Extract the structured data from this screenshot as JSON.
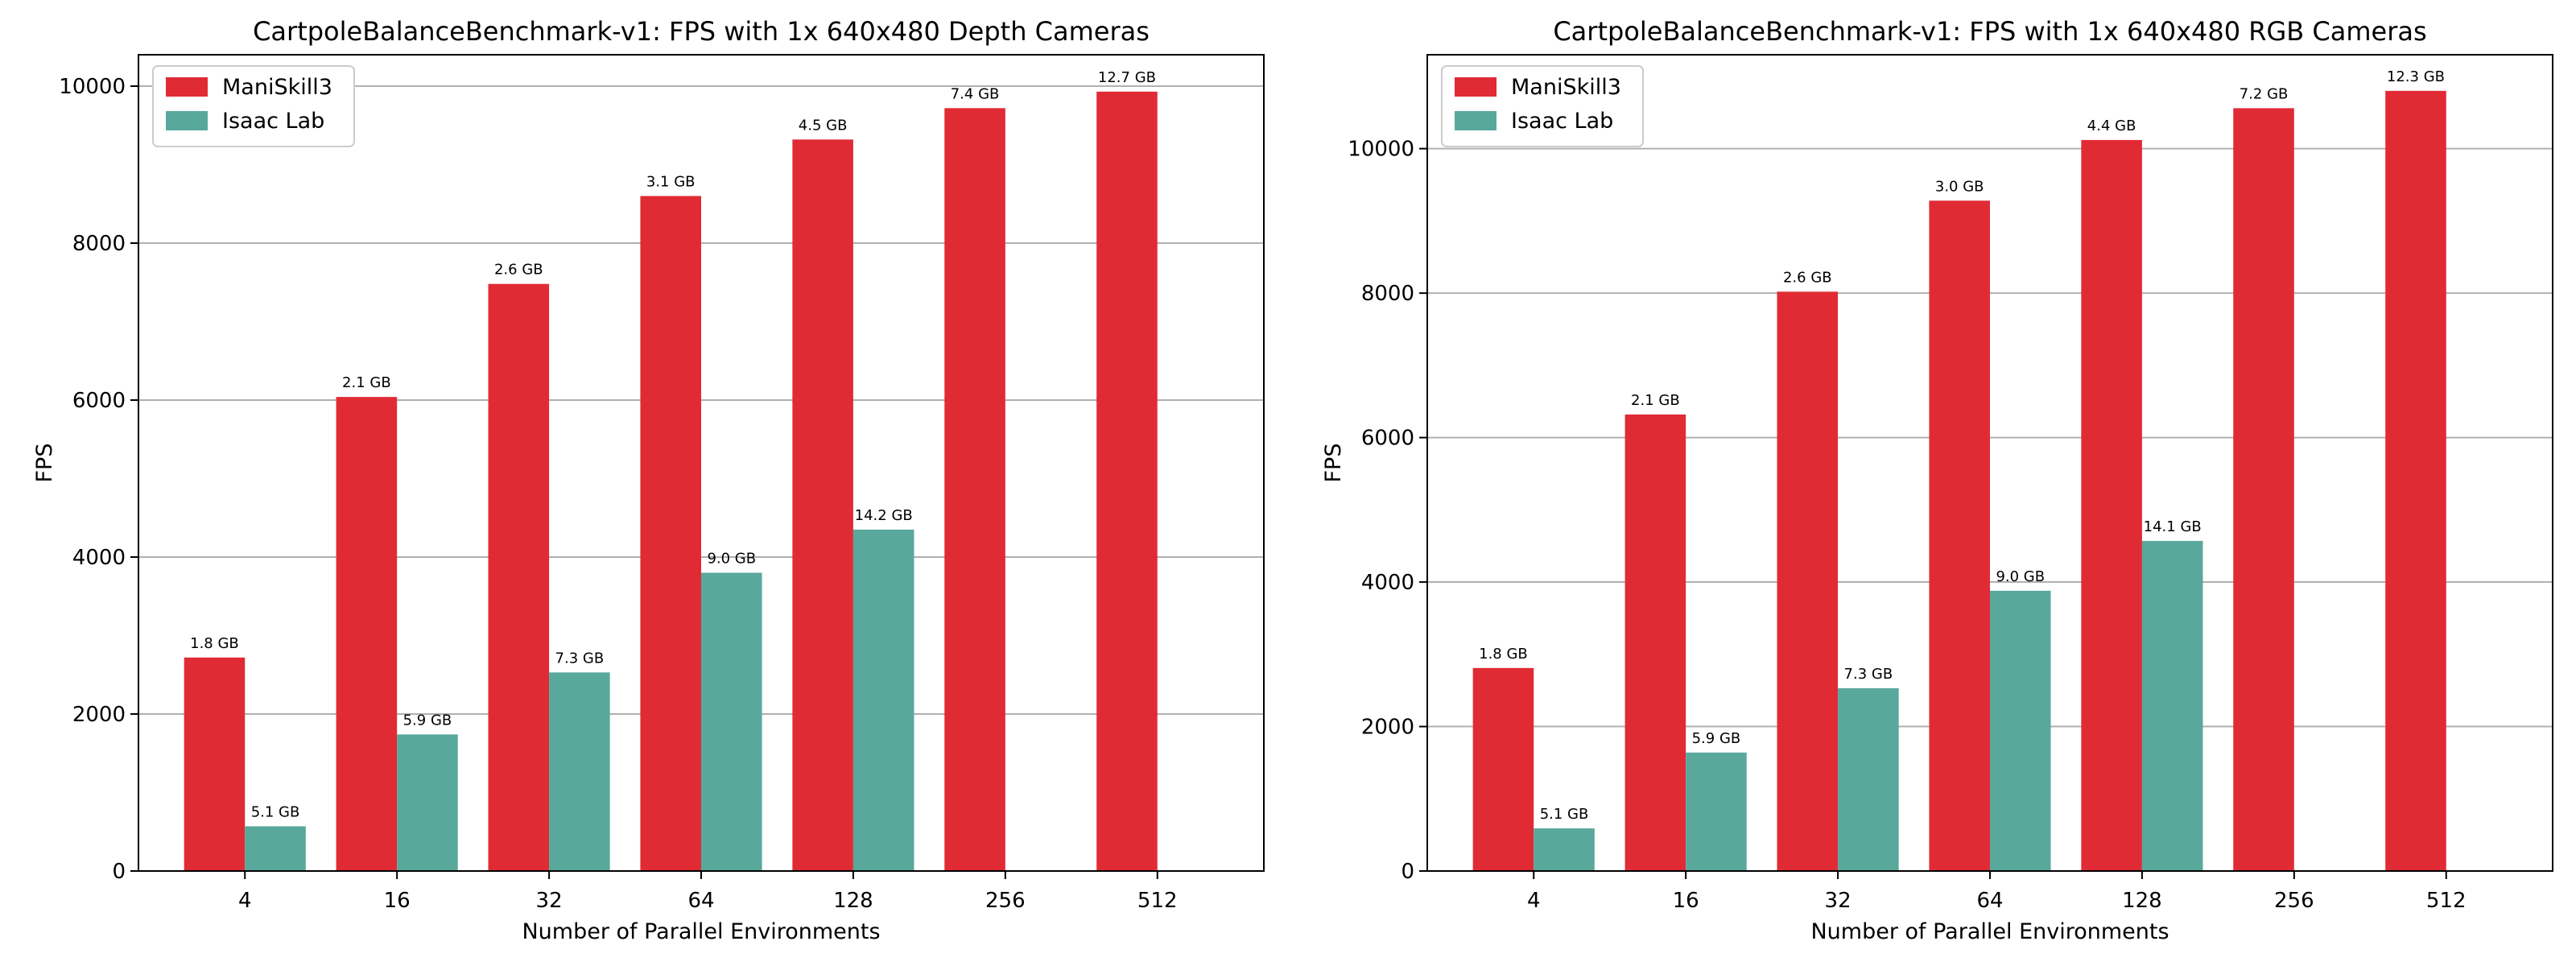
{
  "colors": {
    "maniskill": "#E02B35",
    "isaac": "#59A89C",
    "grid": "#b0b0b0"
  },
  "chart_data": [
    {
      "type": "bar",
      "title": "CartpoleBalanceBenchmark-v1: FPS with 1x 640x480 Depth Cameras",
      "xlabel": "Number of Parallel Environments",
      "ylabel": "FPS",
      "categories": [
        "4",
        "16",
        "32",
        "64",
        "128",
        "256",
        "512"
      ],
      "ylim": [
        0,
        10400
      ],
      "yticks": [
        0,
        2000,
        4000,
        6000,
        8000,
        10000
      ],
      "grid": "y",
      "legend_position": "top-left",
      "series": [
        {
          "name": "ManiSkill3",
          "values": [
            2720,
            6040,
            7480,
            8600,
            9320,
            9720,
            9930
          ],
          "labels": [
            "1.8 GB",
            "2.1 GB",
            "2.6 GB",
            "3.1 GB",
            "4.5 GB",
            "7.4 GB",
            "12.7 GB"
          ]
        },
        {
          "name": "Isaac Lab",
          "values": [
            570,
            1740,
            2530,
            3800,
            4350,
            null,
            null
          ],
          "labels": [
            "5.1 GB",
            "5.9 GB",
            "7.3 GB",
            "9.0 GB",
            "14.2 GB",
            null,
            null
          ]
        }
      ]
    },
    {
      "type": "bar",
      "title": "CartpoleBalanceBenchmark-v1: FPS with 1x 640x480 RGB Cameras",
      "xlabel": "Number of Parallel Environments",
      "ylabel": "FPS",
      "categories": [
        "4",
        "16",
        "32",
        "64",
        "128",
        "256",
        "512"
      ],
      "ylim": [
        0,
        11300
      ],
      "yticks": [
        0,
        2000,
        4000,
        6000,
        8000,
        10000
      ],
      "grid": "y",
      "legend_position": "top-left",
      "series": [
        {
          "name": "ManiSkill3",
          "values": [
            2810,
            6320,
            8020,
            9280,
            10120,
            10560,
            10800
          ],
          "labels": [
            "1.8 GB",
            "2.1 GB",
            "2.6 GB",
            "3.0 GB",
            "4.4 GB",
            "7.2 GB",
            "12.3 GB"
          ]
        },
        {
          "name": "Isaac Lab",
          "values": [
            590,
            1640,
            2530,
            3880,
            4570,
            null,
            null
          ],
          "labels": [
            "5.1 GB",
            "5.9 GB",
            "7.3 GB",
            "9.0 GB",
            "14.1 GB",
            null,
            null
          ]
        }
      ]
    }
  ]
}
